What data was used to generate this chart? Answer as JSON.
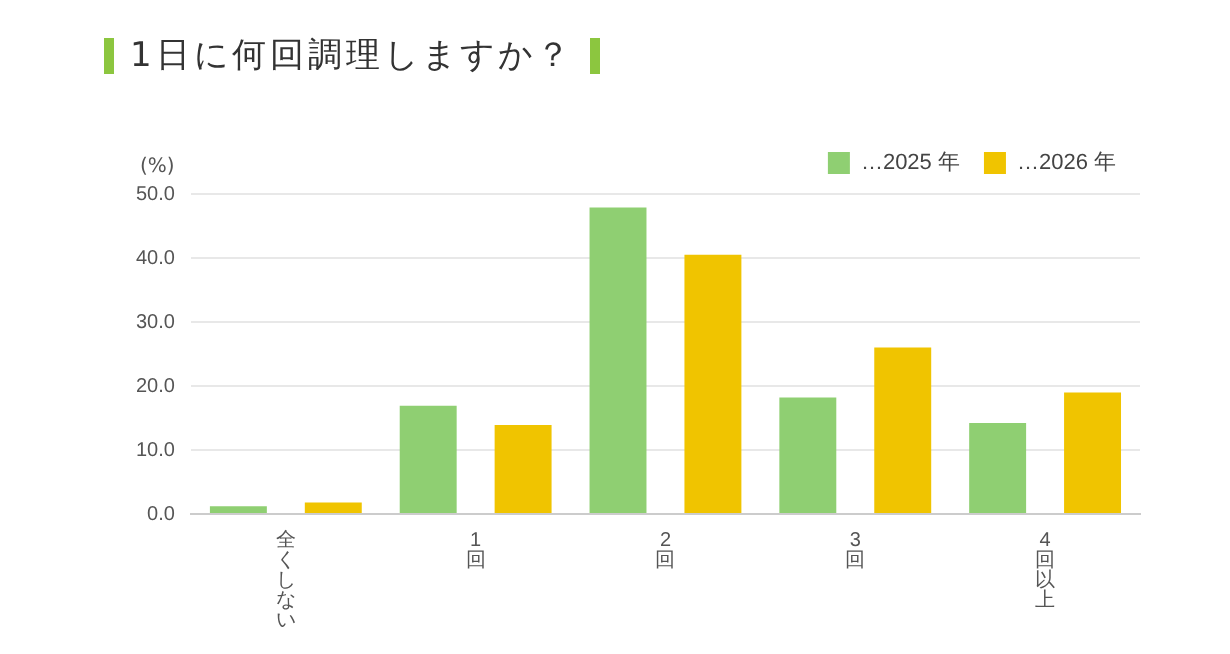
{
  "chart_data": {
    "type": "bar",
    "title": "1日に何回調理しますか？",
    "ylabel": "(%)",
    "categories": [
      "全くしない",
      "1回",
      "2回",
      "3回",
      "4回以上"
    ],
    "series": [
      {
        "name": "…2025 年",
        "color": "#8fcf72",
        "values": [
          1.2,
          16.9,
          47.9,
          18.2,
          14.2
        ]
      },
      {
        "name": "…2026 年",
        "color": "#f0c400",
        "values": [
          1.8,
          13.9,
          40.5,
          26.0,
          19.0
        ]
      }
    ],
    "ylim": [
      0,
      50
    ],
    "yticks": [
      {
        "value": 0,
        "label": "0.0"
      },
      {
        "value": 10,
        "label": "10.0"
      },
      {
        "value": 20,
        "label": "20.0"
      },
      {
        "value": 30,
        "label": "30.0"
      },
      {
        "value": 40,
        "label": "40.0"
      },
      {
        "value": 50,
        "label": "50.0"
      }
    ],
    "grid": "y",
    "legend": "top right"
  }
}
